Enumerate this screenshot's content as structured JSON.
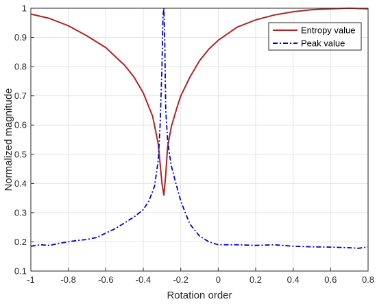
{
  "chart_data": {
    "type": "line",
    "title": "",
    "xlabel": "Rotation order",
    "ylabel": "Normalized magnitude",
    "xlim": [
      -1,
      0.8
    ],
    "ylim": [
      0.1,
      1
    ],
    "x_ticks": [
      "-1",
      "-0.8",
      "-0.6",
      "-0.4",
      "-0.2",
      "0",
      "0.2",
      "0.4",
      "0.6",
      "0.8"
    ],
    "y_ticks": [
      "0.1",
      "0.2",
      "0.3",
      "0.4",
      "0.5",
      "0.6",
      "0.7",
      "0.8",
      "0.9",
      "1"
    ],
    "grid": true,
    "legend_position": "top-right",
    "series": [
      {
        "name": "Entropy value",
        "color": "#b22222",
        "style": "solid",
        "x": [
          -1,
          -0.9,
          -0.8,
          -0.7,
          -0.6,
          -0.5,
          -0.45,
          -0.4,
          -0.35,
          -0.32,
          -0.3,
          -0.29,
          -0.28,
          -0.27,
          -0.25,
          -0.22,
          -0.2,
          -0.15,
          -0.1,
          -0.05,
          0,
          0.1,
          0.2,
          0.3,
          0.4,
          0.5,
          0.6,
          0.7,
          0.8
        ],
        "y": [
          0.98,
          0.965,
          0.94,
          0.905,
          0.865,
          0.805,
          0.765,
          0.71,
          0.63,
          0.535,
          0.4,
          0.36,
          0.43,
          0.525,
          0.595,
          0.66,
          0.7,
          0.765,
          0.82,
          0.86,
          0.89,
          0.935,
          0.96,
          0.977,
          0.988,
          0.995,
          0.998,
          1.0,
          0.998
        ]
      },
      {
        "name": "Peak value",
        "color": "#0000cc",
        "style": "dash-dot",
        "x": [
          -1,
          -0.95,
          -0.9,
          -0.85,
          -0.8,
          -0.75,
          -0.7,
          -0.65,
          -0.6,
          -0.55,
          -0.5,
          -0.45,
          -0.4,
          -0.37,
          -0.34,
          -0.32,
          -0.31,
          -0.3,
          -0.295,
          -0.29,
          -0.285,
          -0.28,
          -0.27,
          -0.26,
          -0.25,
          -0.23,
          -0.2,
          -0.17,
          -0.15,
          -0.1,
          -0.05,
          0,
          0.1,
          0.2,
          0.3,
          0.4,
          0.5,
          0.6,
          0.7,
          0.75,
          0.8
        ],
        "y": [
          0.185,
          0.19,
          0.188,
          0.195,
          0.2,
          0.205,
          0.208,
          0.215,
          0.23,
          0.245,
          0.265,
          0.285,
          0.31,
          0.34,
          0.39,
          0.48,
          0.6,
          0.8,
          0.97,
          1.0,
          0.88,
          0.65,
          0.55,
          0.5,
          0.46,
          0.41,
          0.34,
          0.29,
          0.26,
          0.22,
          0.2,
          0.19,
          0.19,
          0.188,
          0.19,
          0.185,
          0.183,
          0.182,
          0.18,
          0.178,
          0.183
        ]
      }
    ]
  }
}
